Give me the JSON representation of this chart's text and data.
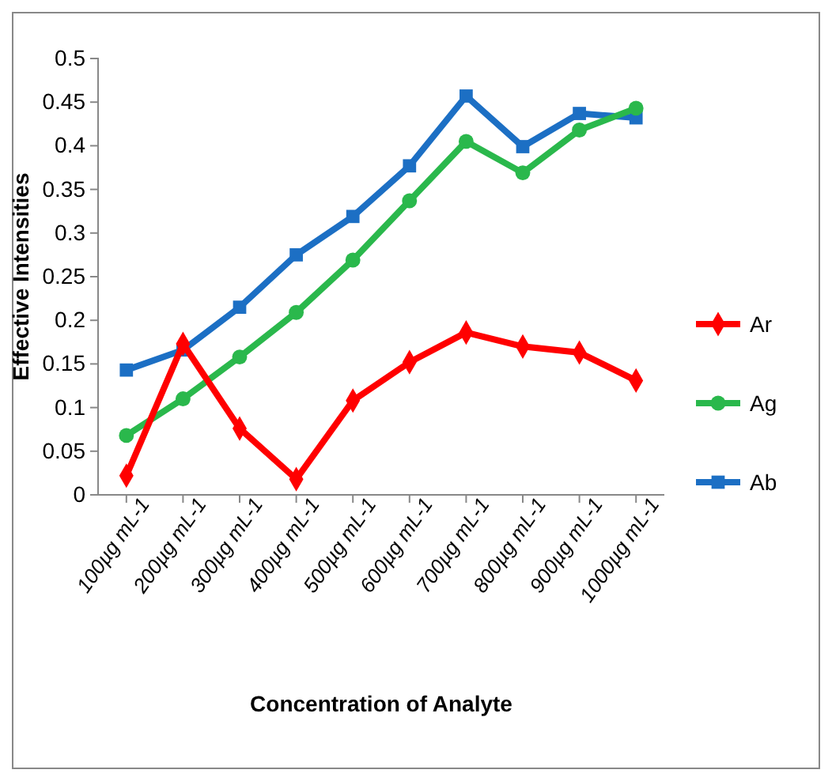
{
  "chart_data": {
    "type": "line",
    "xlabel": "Concentration of Analyte",
    "ylabel": "Effective Intensities",
    "categories": [
      "100µg mL-1",
      "200µg mL-1",
      "300µg mL-1",
      "400µg mL-1",
      "500µg mL-1",
      "600µg mL-1",
      "700µg mL-1",
      "800µg mL-1",
      "900µg mL-1",
      "1000µg mL-1"
    ],
    "ylim": [
      0,
      0.5
    ],
    "yticks": [
      0,
      0.05,
      0.1,
      0.15,
      0.2,
      0.25,
      0.3,
      0.35,
      0.4,
      0.45,
      0.5
    ],
    "grid": false,
    "legend": "right",
    "series": [
      {
        "name": "Ar",
        "color": "#ff0000",
        "marker": "diamond",
        "values": [
          0.022,
          0.173,
          0.076,
          0.018,
          0.108,
          0.152,
          0.186,
          0.17,
          0.163,
          0.131
        ]
      },
      {
        "name": "Ag",
        "color": "#2ab84c",
        "marker": "circle",
        "values": [
          0.068,
          0.11,
          0.158,
          0.209,
          0.269,
          0.337,
          0.405,
          0.369,
          0.418,
          0.443
        ]
      },
      {
        "name": "Ab",
        "color": "#1c6fc4",
        "marker": "square",
        "values": [
          0.143,
          0.166,
          0.215,
          0.275,
          0.319,
          0.377,
          0.457,
          0.399,
          0.437,
          0.432
        ]
      }
    ]
  }
}
